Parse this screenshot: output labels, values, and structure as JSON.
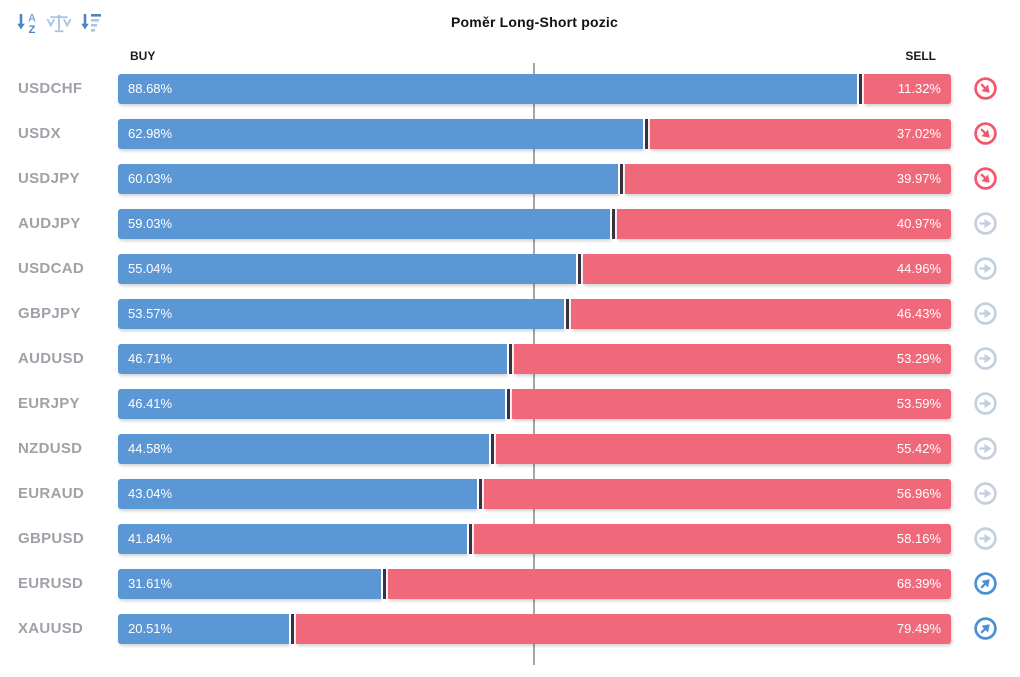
{
  "title": "Poměr Long-Short pozic",
  "column_headers": {
    "buy": "BUY",
    "sell": "SELL"
  },
  "toolbar": {
    "sort_alpha_icon": "sort-alphabetical",
    "balance_icon": "balance-scale",
    "sort_amount_icon": "sort-amount-descending"
  },
  "colors": {
    "buy_bar": "#5b97d4",
    "sell_bar": "#f0697b",
    "segment_divider": "#3a3240",
    "center_line": "#a6a6a6",
    "pair_label": "#9ea2a8",
    "trend_down": "#f4566b",
    "trend_neutral": "#c5d0de",
    "trend_up": "#4b8fd5",
    "icon_blue_dark": "#4c84c4",
    "icon_blue_light": "#a9c6e4"
  },
  "chart_data": {
    "type": "bar",
    "orientation": "horizontal",
    "stacked": true,
    "title": "Poměr Long-Short pozic",
    "xlim": [
      0,
      100
    ],
    "center_reference_line": 50,
    "categories": [
      "USDCHF",
      "USDX",
      "USDJPY",
      "AUDJPY",
      "USDCAD",
      "GBPJPY",
      "AUDUSD",
      "EURJPY",
      "NZDUSD",
      "EURAUD",
      "GBPUSD",
      "EURUSD",
      "XAUUSD"
    ],
    "series": [
      {
        "name": "BUY",
        "color": "#5b97d4",
        "values": [
          88.68,
          62.98,
          60.03,
          59.03,
          55.04,
          53.57,
          46.71,
          46.41,
          44.58,
          43.04,
          41.84,
          31.61,
          20.51
        ]
      },
      {
        "name": "SELL",
        "color": "#f0697b",
        "values": [
          11.32,
          37.02,
          39.97,
          40.97,
          44.96,
          46.43,
          53.29,
          53.59,
          55.42,
          56.96,
          58.16,
          68.39,
          79.49
        ]
      }
    ],
    "trend_per_row": [
      "down",
      "down",
      "down",
      "neutral",
      "neutral",
      "neutral",
      "neutral",
      "neutral",
      "neutral",
      "neutral",
      "neutral",
      "up",
      "up"
    ]
  }
}
